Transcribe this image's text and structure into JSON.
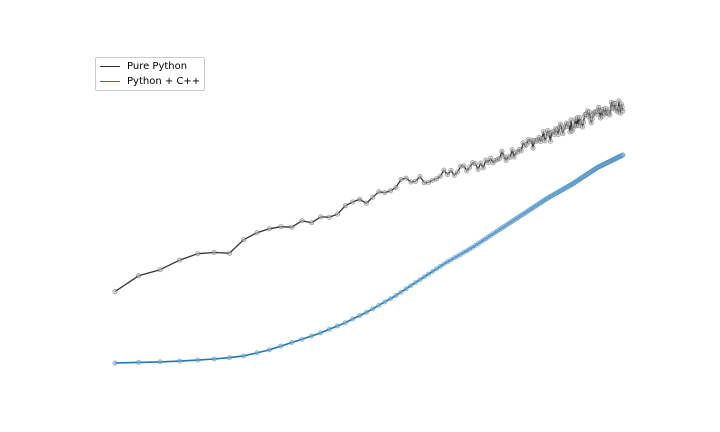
{
  "chart_data": {
    "type": "line",
    "title": "",
    "xlabel": "",
    "ylabel": "",
    "axes_visible": false,
    "grid": false,
    "legend_position": "top-left",
    "series": [
      {
        "name": "Pure Python",
        "color": "#333333",
        "marker": "circle",
        "pattern": "increasing with strong noise, denser samples at larger x",
        "key_points": [
          [
            0.0,
            0.34
          ],
          [
            0.05,
            0.43
          ],
          [
            0.1,
            0.45
          ],
          [
            0.16,
            0.52
          ],
          [
            0.22,
            0.53
          ],
          [
            0.28,
            0.62
          ],
          [
            0.35,
            0.66
          ],
          [
            0.42,
            0.71
          ],
          [
            0.5,
            0.79
          ],
          [
            0.57,
            0.87
          ],
          [
            0.63,
            0.89
          ],
          [
            0.7,
            0.94
          ],
          [
            0.76,
            0.99
          ],
          [
            0.82,
            1.06
          ],
          [
            0.88,
            1.12
          ],
          [
            0.94,
            1.19
          ],
          [
            1.0,
            1.24
          ]
        ]
      },
      {
        "name": "Python + C++",
        "color": "#1f77b4",
        "marker": "circle",
        "pattern": "smooth convex increasing curve, very little noise",
        "key_points": [
          [
            0.0,
            0.0
          ],
          [
            0.05,
            0.003
          ],
          [
            0.1,
            0.006
          ],
          [
            0.15,
            0.012
          ],
          [
            0.2,
            0.02
          ],
          [
            0.25,
            0.032
          ],
          [
            0.3,
            0.06
          ],
          [
            0.35,
            0.1
          ],
          [
            0.4,
            0.14
          ],
          [
            0.45,
            0.19
          ],
          [
            0.5,
            0.25
          ],
          [
            0.55,
            0.32
          ],
          [
            0.6,
            0.4
          ],
          [
            0.65,
            0.48
          ],
          [
            0.7,
            0.55
          ],
          [
            0.75,
            0.63
          ],
          [
            0.8,
            0.71
          ],
          [
            0.85,
            0.79
          ],
          [
            0.9,
            0.86
          ],
          [
            0.95,
            0.94
          ],
          [
            1.0,
            1.0
          ]
        ]
      }
    ]
  }
}
